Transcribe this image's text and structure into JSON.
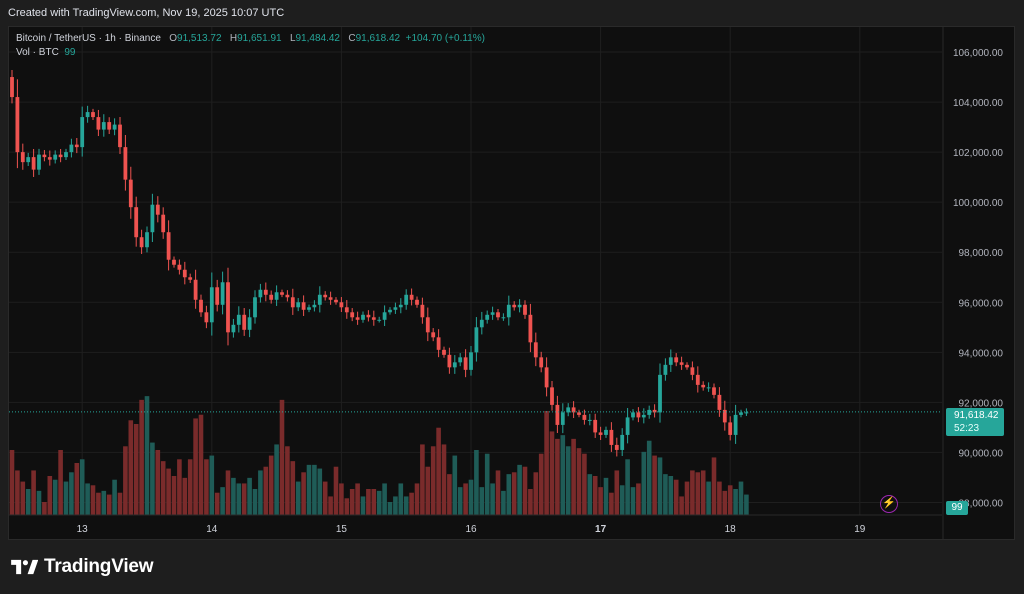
{
  "header": {
    "created": "Created with TradingView.com, Nov 19, 2025 10:07 UTC"
  },
  "legend": {
    "symbol": "Bitcoin / TetherUS · 1h · Binance",
    "o_label": "O",
    "o_value": "91,513.72",
    "h_label": "H",
    "h_value": "91,651.91",
    "l_label": "L",
    "l_value": "91,484.42",
    "c_label": "C",
    "c_value": "91,618.42",
    "change": "+104.70 (+0.11%)",
    "vol_label": "Vol · BTC",
    "vol_value": "99"
  },
  "price_tag": {
    "price": "91,618.42",
    "countdown": "52:23"
  },
  "volume_tag": "99",
  "brand": {
    "name": "TradingView"
  },
  "colors": {
    "up": "#26a69a",
    "down": "#ef5350",
    "vol_up": "#1f5c57",
    "vol_down": "#7a2b2b",
    "background": "#0f0f0f",
    "grid": "#1f1f1f"
  },
  "icons": {
    "bolt": "lightning-icon",
    "logo": "tradingview-logo-icon"
  },
  "chart_data": {
    "type": "candlestick",
    "interval": "1h",
    "y_axis": {
      "ylim": [
        87500,
        107000
      ],
      "ticks": [
        106000,
        104000,
        102000,
        100000,
        98000,
        96000,
        94000,
        92000,
        90000,
        88000
      ],
      "tick_labels": [
        "106,000.00",
        "104,000.00",
        "102,000.00",
        "100,000.00",
        "98,000.00",
        "96,000.00",
        "94,000.00",
        "92,000.00",
        "90,000.00",
        "88,000.00"
      ],
      "side": "right"
    },
    "x_axis": {
      "tick_labels": [
        "13",
        "14",
        "15",
        "16",
        "17",
        "18",
        "19"
      ],
      "tick_hours": [
        13,
        37,
        61,
        85,
        109,
        133,
        157
      ],
      "bold_label": "17"
    },
    "grid": true,
    "last_price": 91618.42,
    "start_close": 105000,
    "closes": [
      104200,
      102000,
      101600,
      101800,
      101300,
      101900,
      101800,
      101700,
      101900,
      101800,
      102000,
      102300,
      102200,
      103400,
      103600,
      103400,
      102900,
      103200,
      102900,
      103100,
      102200,
      100900,
      99800,
      98600,
      98200,
      98800,
      99900,
      99500,
      98800,
      97700,
      97500,
      97300,
      97000,
      96900,
      96100,
      95600,
      95200,
      96600,
      95900,
      96800,
      94800,
      95100,
      95500,
      94900,
      95400,
      96200,
      96500,
      96300,
      96100,
      96400,
      96300,
      96200,
      95800,
      96000,
      95700,
      95800,
      95900,
      96300,
      96200,
      96100,
      96000,
      95800,
      95600,
      95400,
      95300,
      95500,
      95400,
      95300,
      95300,
      95600,
      95700,
      95800,
      95900,
      96300,
      96100,
      95900,
      95400,
      94800,
      94600,
      94100,
      93900,
      93400,
      93600,
      93800,
      93300,
      94000,
      95000,
      95300,
      95500,
      95600,
      95400,
      95400,
      95900,
      95800,
      95900,
      95500,
      94400,
      93800,
      93400,
      92600,
      91900,
      91100,
      91600,
      91800,
      91600,
      91500,
      91300,
      91300,
      90800,
      90700,
      90900,
      90300,
      90100,
      90700,
      91400,
      91600,
      91400,
      91500,
      91700,
      91600,
      93100,
      93500,
      93800,
      93600,
      93500,
      93400,
      93100,
      92700,
      92600,
      92600,
      92300,
      91700,
      91200,
      90700,
      91500,
      91600,
      91600
    ],
    "volume": [
      35,
      24,
      18,
      14,
      24,
      13,
      7,
      21,
      19,
      35,
      18,
      23,
      28,
      30,
      17,
      16,
      12,
      13,
      11,
      19,
      12,
      37,
      51,
      49,
      62,
      64,
      39,
      35,
      29,
      25,
      21,
      30,
      20,
      30,
      52,
      54,
      30,
      32,
      12,
      15,
      24,
      20,
      17,
      17,
      20,
      14,
      24,
      26,
      32,
      38,
      62,
      37,
      29,
      18,
      23,
      27,
      27,
      25,
      18,
      10,
      26,
      17,
      9,
      14,
      17,
      10,
      14,
      14,
      13,
      17,
      7,
      10,
      17,
      10,
      12,
      17,
      38,
      26,
      37,
      47,
      38,
      22,
      32,
      15,
      17,
      19,
      35,
      15,
      33,
      17,
      24,
      13,
      22,
      23,
      27,
      26,
      14,
      23,
      33,
      56,
      45,
      41,
      43,
      37,
      41,
      36,
      33,
      22,
      21,
      15,
      20,
      12,
      24,
      16,
      30,
      15,
      17,
      34,
      40,
      32,
      31,
      22,
      21,
      19,
      10,
      18,
      24,
      23,
      24,
      18,
      31,
      18,
      13,
      16,
      14,
      18,
      11
    ]
  }
}
